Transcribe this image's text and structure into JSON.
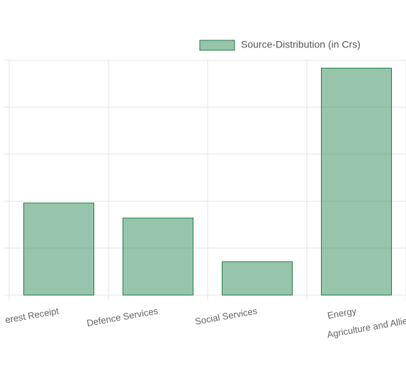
{
  "chart_data": {
    "type": "bar",
    "legend": "Source-Distribution (in Crs)",
    "categories": [
      [
        "erest Receipt"
      ],
      [
        "Defence Services"
      ],
      [
        "Social Services"
      ],
      [
        "Energy",
        "Agriculture and Allie"
      ]
    ],
    "values": [
      1.96,
      1.64,
      0.71,
      4.83
    ],
    "color": "rgba(46,139,87,0.5)",
    "border_color": "#1e7a45",
    "ylim": [
      0,
      5
    ],
    "yticks": [
      0,
      1,
      2,
      3,
      4,
      5
    ],
    "grid": true
  }
}
